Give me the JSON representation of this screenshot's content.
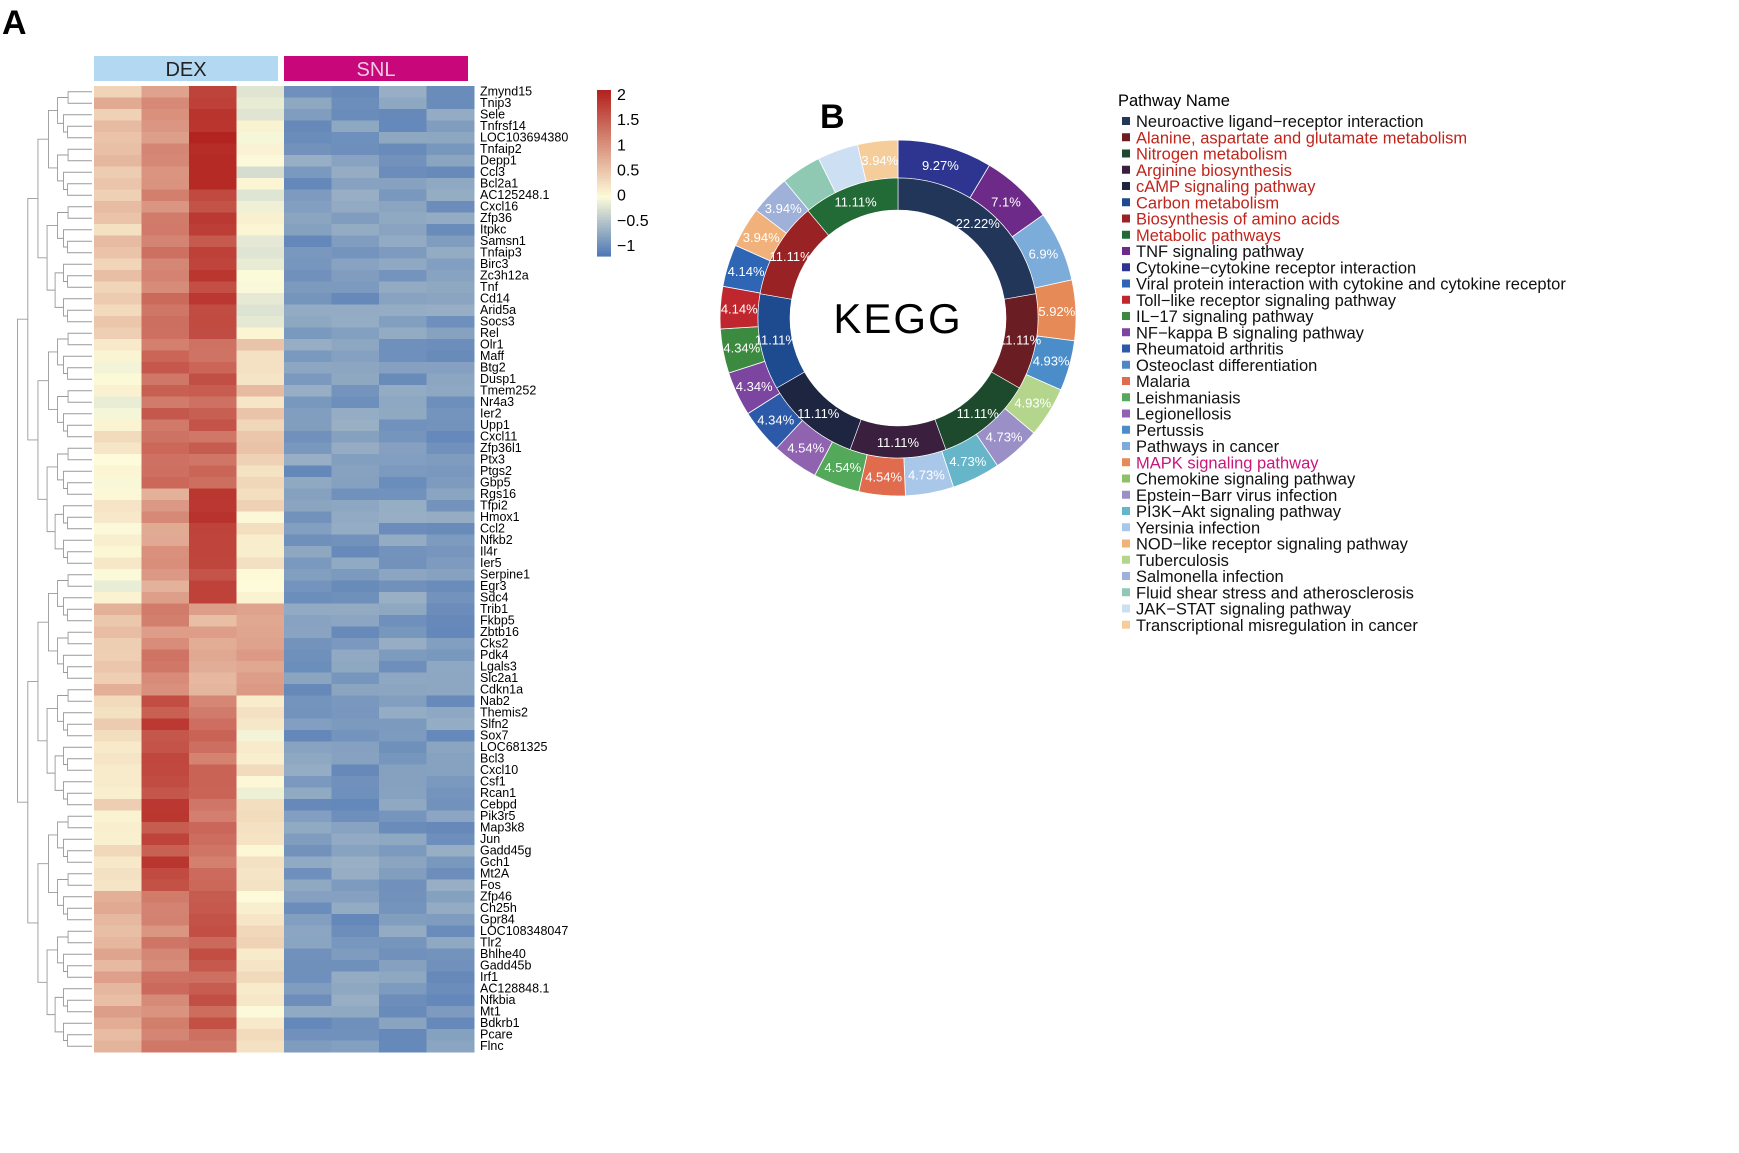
{
  "panels": {
    "a": "A",
    "b": "B"
  },
  "chart_data": [
    {
      "type": "heatmap",
      "title": "",
      "groups": [
        {
          "name": "DEX",
          "color": "#b3d8f2",
          "columns": 4
        },
        {
          "name": "SNL",
          "color": "#c8077a",
          "columns": 4
        }
      ],
      "rows": [
        "Zmynd15",
        "Tnip3",
        "Sele",
        "Tnfrsf14",
        "LOC103694380",
        "Tnfaip2",
        "Depp1",
        "Ccl3",
        "Bcl2a1",
        "AC125248.1",
        "Cxcl16",
        "Zfp36",
        "Itpkc",
        "Samsn1",
        "Tnfaip3",
        "Birc3",
        "Zc3h12a",
        "Tnf",
        "Cd14",
        "Arid5a",
        "Socs3",
        "Rel",
        "Olr1",
        "Maff",
        "Btg2",
        "Dusp1",
        "Tmem252",
        "Nr4a3",
        "Ier2",
        "Upp1",
        "Cxcl11",
        "Zfp36l1",
        "Ptx3",
        "Ptgs2",
        "Gbp5",
        "Rgs16",
        "Tfpi2",
        "Hmox1",
        "Ccl2",
        "Nfkb2",
        "Il4r",
        "Ier5",
        "Serpine1",
        "Egr3",
        "Sdc4",
        "Trib1",
        "Fkbp5",
        "Zbtb16",
        "Cks2",
        "Pdk4",
        "Lgals3",
        "Slc2a1",
        "Cdkn1a",
        "Nab2",
        "Themis2",
        "Slfn2",
        "Sox7",
        "LOC681325",
        "Bcl3",
        "Cxcl10",
        "Csf1",
        "Rcan1",
        "Cebpd",
        "Pik3r5",
        "Map3k8",
        "Jun",
        "Gadd45g",
        "Gch1",
        "Mt2A",
        "Fos",
        "Zfp46",
        "Ch25h",
        "Gpr84",
        "LOC108348047",
        "Tlr2",
        "Bhlhe40",
        "Gadd45b",
        "Irf1",
        "AC128848.1",
        "Nfkbia",
        "Mt1",
        "Bdkrb1",
        "Pcare",
        "Flnc"
      ],
      "colorbar": {
        "ticks": [
          "2",
          "1.5",
          "1",
          "0.5",
          "0",
          "−0.5",
          "−1"
        ],
        "values": [
          2,
          1.5,
          1,
          0.5,
          0,
          -0.5,
          -1
        ],
        "range": [
          -1.2,
          2.1
        ],
        "low": "#4a74b4",
        "mid": "#fdfbd9",
        "high": "#b3231f"
      },
      "row_profiles": [
        {
          "from": 0,
          "to": 9,
          "dex": [
            0.6,
            1.0,
            2.0,
            -0.1
          ]
        },
        {
          "from": 9,
          "to": 22,
          "dex": [
            0.4,
            1.2,
            1.7,
            0.0
          ]
        },
        {
          "from": 22,
          "to": 35,
          "dex": [
            0.1,
            1.4,
            1.5,
            0.4
          ]
        },
        {
          "from": 35,
          "to": 45,
          "dex": [
            0.0,
            0.9,
            1.8,
            0.2
          ]
        },
        {
          "from": 45,
          "to": 53,
          "dex": [
            0.6,
            1.1,
            0.7,
            0.9
          ]
        },
        {
          "from": 53,
          "to": 70,
          "dex": [
            0.3,
            1.7,
            1.3,
            0.1
          ]
        },
        {
          "from": 70,
          "to": 84,
          "dex": [
            0.8,
            1.2,
            1.5,
            0.2
          ]
        }
      ],
      "snl_value": -0.85
    },
    {
      "type": "pie",
      "subtype": "donut",
      "title": "KEGG",
      "legend_title": "Pathway Name",
      "inner": {
        "labels": [
          "Neuroactive ligand−receptor interaction",
          "Alanine,  aspartate and glutamate metabolism",
          "Nitrogen metabolism",
          "Arginine biosynthesis",
          "cAMP signaling pathway",
          "Carbon metabolism",
          "Biosynthesis of amino acids",
          "Metabolic pathways"
        ],
        "values": [
          22.22,
          11.11,
          11.11,
          11.11,
          11.11,
          11.11,
          11.11,
          11.11
        ],
        "value_labels": [
          "22.22%",
          "11.11%",
          "11.11%",
          "11.11%",
          "11.11%",
          "11.11%",
          "11.11%",
          "11.11%"
        ]
      },
      "outer": {
        "labels": [
          "TNF signaling pathway",
          "Cytokine−cytokine receptor interaction",
          "Viral protein interaction with cytokine and cytokine receptor",
          "Toll−like receptor signaling pathway",
          "IL−17 signaling pathway",
          "NF−kappa B signaling pathway",
          "Rheumatoid arthritis",
          "Osteoclast differentiation",
          "Malaria",
          "Leishmaniasis",
          "Legionellosis",
          "Pertussis",
          "Pathways in cancer",
          "MAPK signaling pathway",
          "Chemokine signaling pathway",
          "Epstein−Barr virus infection",
          "PI3K−Akt signaling pathway",
          "Yersinia infection",
          "NOD−like receptor signaling pathway",
          "Tuberculosis",
          "Salmonella infection",
          "Fluid shear stress and atherosclerosis",
          "JAK−STAT signaling pathway",
          "Transcriptional misregulation in cancer"
        ],
        "ring_order": [
          1,
          0,
          12,
          13,
          11,
          19,
          15,
          16,
          17,
          8,
          9,
          10,
          6,
          5,
          4,
          3,
          2,
          18,
          20,
          21,
          22,
          23
        ],
        "ring_values": [
          9.27,
          7.1,
          6.9,
          5.92,
          4.93,
          4.93,
          4.73,
          4.73,
          4.73,
          4.54,
          4.54,
          4.54,
          4.34,
          4.34,
          4.34,
          4.14,
          4.14,
          3.94,
          3.94,
          3.94,
          4.0,
          3.94
        ],
        "value_labels": [
          "9.27%",
          "7.1%",
          "6.9%",
          "5.92%",
          "4.93%",
          "4.93%",
          "4.73%",
          "4.73%",
          "4.73%",
          "4.54%",
          "4.54%",
          "4.54%",
          "4.34%",
          "4.34%",
          "4.34%",
          "4.14%",
          "4.14%",
          "3.94%",
          "3.94%",
          "",
          "",
          "3.94%"
        ]
      },
      "legend": [
        {
          "label": "Neuroactive ligand−receptor interaction",
          "color": "#22365a",
          "text_color": "#111111"
        },
        {
          "label": "Alanine,  aspartate and glutamate metabolism",
          "color": "#6b1d24",
          "text_color": "#c1241b"
        },
        {
          "label": "Nitrogen metabolism",
          "color": "#1d4a2c",
          "text_color": "#c1241b"
        },
        {
          "label": "Arginine biosynthesis",
          "color": "#3b1f3f",
          "text_color": "#c1241b"
        },
        {
          "label": "cAMP signaling pathway",
          "color": "#1e2540",
          "text_color": "#c1241b"
        },
        {
          "label": "Carbon metabolism",
          "color": "#1e4a90",
          "text_color": "#c1241b"
        },
        {
          "label": "Biosynthesis of amino acids",
          "color": "#992324",
          "text_color": "#c1241b"
        },
        {
          "label": "Metabolic pathways",
          "color": "#236b36",
          "text_color": "#c1241b"
        },
        {
          "label": "TNF signaling pathway",
          "color": "#6e2a89",
          "text_color": "#111111"
        },
        {
          "label": "Cytokine−cytokine receptor interaction",
          "color": "#2d3590",
          "text_color": "#111111"
        },
        {
          "label": "Viral protein interaction with cytokine and cytokine receptor",
          "color": "#2f65b5",
          "text_color": "#111111"
        },
        {
          "label": "Toll−like receptor signaling pathway",
          "color": "#c0262d",
          "text_color": "#111111"
        },
        {
          "label": "IL−17 signaling pathway",
          "color": "#3c8a3f",
          "text_color": "#111111"
        },
        {
          "label": "NF−kappa B signaling pathway",
          "color": "#7b45a0",
          "text_color": "#111111"
        },
        {
          "label": "Rheumatoid arthritis",
          "color": "#2c5aa8",
          "text_color": "#111111"
        },
        {
          "label": "Osteoclast differentiation",
          "color": "#4f87c6",
          "text_color": "#111111"
        },
        {
          "label": "Malaria",
          "color": "#e06b4d",
          "text_color": "#111111"
        },
        {
          "label": "Leishmaniasis",
          "color": "#53a85a",
          "text_color": "#111111"
        },
        {
          "label": "Legionellosis",
          "color": "#8f63b0",
          "text_color": "#111111"
        },
        {
          "label": "Pertussis",
          "color": "#4b8dc8",
          "text_color": "#111111"
        },
        {
          "label": "Pathways in cancer",
          "color": "#7cacd9",
          "text_color": "#111111"
        },
        {
          "label": "MAPK signaling pathway",
          "color": "#e68a57",
          "text_color": "#c8177c"
        },
        {
          "label": "Chemokine signaling pathway",
          "color": "#8dc169",
          "text_color": "#111111"
        },
        {
          "label": "Epstein−Barr virus infection",
          "color": "#9a8fc6",
          "text_color": "#111111"
        },
        {
          "label": "PI3K−Akt signaling pathway",
          "color": "#66b5c9",
          "text_color": "#111111"
        },
        {
          "label": "Yersinia infection",
          "color": "#a9c7e8",
          "text_color": "#111111"
        },
        {
          "label": "NOD−like receptor signaling pathway",
          "color": "#f0b27a",
          "text_color": "#111111"
        },
        {
          "label": "Tuberculosis",
          "color": "#b3d68c",
          "text_color": "#111111"
        },
        {
          "label": "Salmonella infection",
          "color": "#9fb1d9",
          "text_color": "#111111"
        },
        {
          "label": "Fluid shear stress and atherosclerosis",
          "color": "#8fc9b4",
          "text_color": "#111111"
        },
        {
          "label": "JAK−STAT signaling pathway",
          "color": "#cddff2",
          "text_color": "#111111"
        },
        {
          "label": "Transcriptional misregulation in cancer",
          "color": "#f5cd9a",
          "text_color": "#111111"
        }
      ]
    }
  ]
}
